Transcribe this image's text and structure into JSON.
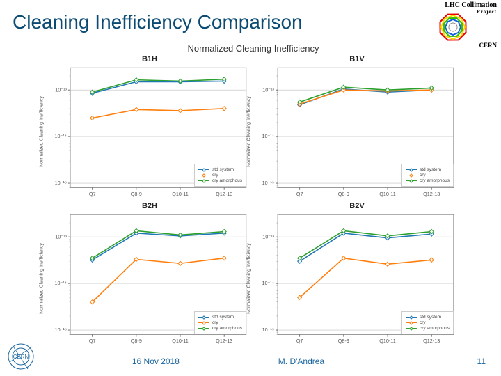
{
  "title": "Cleaning Inefficiency Comparison",
  "logo": {
    "line1": "LHC Collimation",
    "line2": "Project",
    "corner": "CERN",
    "ring_colors": [
      "#e80000",
      "#ffd400",
      "#34c000",
      "#1060e0"
    ]
  },
  "footer": {
    "date": "16 Nov 2018",
    "author": "M. D'Andrea",
    "page": "11"
  },
  "figure": {
    "suptitle": "Normalized Cleaning Inefficiency",
    "ylabel": "Normalized Cleaning Inefficiency",
    "x_categories": [
      "Q7",
      "Q8-9",
      "Q10-11",
      "Q12-13"
    ],
    "y_axis": {
      "scale": "log",
      "ylim": [
        8e-16,
        3e-13
      ],
      "ticks": [
        1e-15,
        1e-14,
        1e-13
      ],
      "ticklabels": [
        "10⁻¹⁵",
        "10⁻¹⁴",
        "10⁻¹³"
      ]
    },
    "series_style": {
      "std": {
        "label": "std system",
        "color": "#1f77b4",
        "marker": "diamond"
      },
      "cry": {
        "label": "cry",
        "color": "#ff7f0e",
        "marker": "diamond"
      },
      "cry_amorf": {
        "label": "cry amorphous",
        "color": "#2ca02c",
        "marker": "diamond"
      }
    },
    "line_width": 1.5,
    "marker_size": 4,
    "background_color": "#ffffff",
    "grid_color": "#bfbfbf",
    "spine_color": "#888888",
    "tick_fontsize": 7,
    "label_fontsize": 7,
    "title_fontsize": 11,
    "panels": [
      {
        "title": "B1H",
        "std": [
          8.5e-14,
          1.5e-13,
          1.5e-13,
          1.55e-13
        ],
        "cry": [
          2.5e-14,
          3.8e-14,
          3.6e-14,
          4e-14
        ],
        "cry_amorf": [
          9e-14,
          1.65e-13,
          1.55e-13,
          1.7e-13
        ]
      },
      {
        "title": "B1V",
        "std": [
          4.8e-14,
          1.05e-13,
          9e-14,
          1e-13
        ],
        "cry": [
          5e-14,
          1e-13,
          9.5e-14,
          1e-13
        ],
        "cry_amorf": [
          5.5e-14,
          1.15e-13,
          1e-13,
          1.1e-13
        ]
      },
      {
        "title": "B2H",
        "std": [
          3.2e-14,
          1.2e-13,
          1.05e-13,
          1.2e-13
        ],
        "cry": [
          4e-15,
          3.3e-14,
          2.7e-14,
          3.5e-14
        ],
        "cry_amorf": [
          3.5e-14,
          1.35e-13,
          1.1e-13,
          1.3e-13
        ]
      },
      {
        "title": "B2V",
        "std": [
          3e-14,
          1.2e-13,
          9.5e-14,
          1.15e-13
        ],
        "cry": [
          5e-15,
          3.5e-14,
          2.6e-14,
          3.2e-14
        ],
        "cry_amorf": [
          3.5e-14,
          1.35e-13,
          1.05e-13,
          1.3e-13
        ]
      }
    ]
  }
}
